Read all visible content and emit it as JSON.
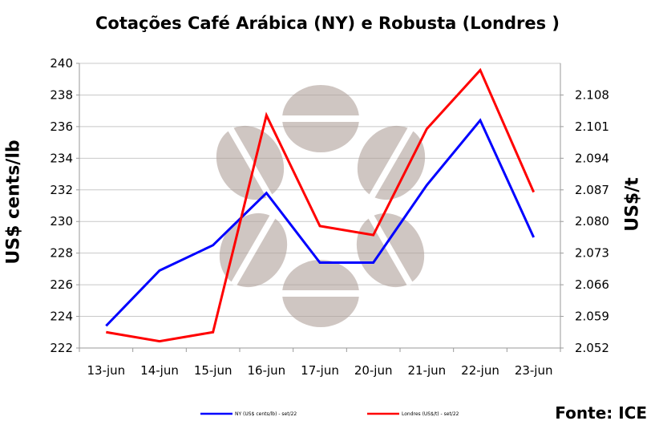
{
  "title": "Cotações Café Arábica (NY) e Robusta (Londres )",
  "source": "Fonte: ICE",
  "chart_data": {
    "type": "line",
    "title": "Cotações Café Arábica (NY) e Robusta (Londres )",
    "categories": [
      "13-jun",
      "14-jun",
      "15-jun",
      "16-jun",
      "17-jun",
      "20-jun",
      "21-jun",
      "22-jun",
      "23-jun"
    ],
    "y_left": {
      "label": "US$ cents/lb",
      "range": [
        222,
        240
      ],
      "ticks": [
        "222",
        "224",
        "226",
        "228",
        "230",
        "232",
        "234",
        "236",
        "238",
        "240"
      ]
    },
    "y_right": {
      "label": "US$/t",
      "range": [
        2.052,
        2.115
      ],
      "ticks": [
        "2.052",
        "2.059",
        "2.066",
        "2.073",
        "2.080",
        "2.087",
        "2.094",
        "2.101",
        "2.108"
      ]
    },
    "series": [
      {
        "name": "NY (US$ cents/lb) - set/22",
        "color": "#0000ff",
        "axis": "left",
        "values": [
          223.4,
          226.9,
          228.5,
          231.8,
          227.4,
          227.4,
          232.3,
          236.4,
          229.0
        ]
      },
      {
        "name": "Londres (US$/t) - set/22",
        "color": "#ff0000",
        "axis": "right",
        "values": [
          2.0555,
          2.0535,
          2.0555,
          2.1035,
          2.079,
          2.077,
          2.1005,
          2.1135,
          2.0865
        ]
      }
    ],
    "grid": true,
    "legend": "bottom"
  }
}
